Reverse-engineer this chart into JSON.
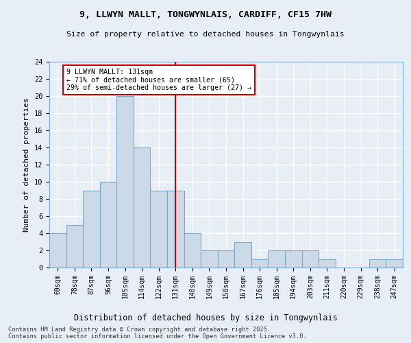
{
  "title1": "9, LLWYN MALLT, TONGWYNLAIS, CARDIFF, CF15 7HW",
  "title2": "Size of property relative to detached houses in Tongwynlais",
  "xlabel": "Distribution of detached houses by size in Tongwynlais",
  "ylabel": "Number of detached properties",
  "bins": [
    "69sqm",
    "78sqm",
    "87sqm",
    "96sqm",
    "105sqm",
    "114sqm",
    "122sqm",
    "131sqm",
    "140sqm",
    "149sqm",
    "158sqm",
    "167sqm",
    "176sqm",
    "185sqm",
    "194sqm",
    "203sqm",
    "211sqm",
    "220sqm",
    "229sqm",
    "238sqm",
    "247sqm"
  ],
  "values": [
    4,
    5,
    9,
    10,
    20,
    14,
    9,
    9,
    4,
    2,
    2,
    3,
    1,
    2,
    2,
    2,
    1,
    0,
    0,
    1,
    1
  ],
  "bar_color": "#ccd9e8",
  "bar_edge_color": "#7aaac8",
  "highlight_index": 7,
  "highlight_line_color": "#cc0000",
  "annotation_text": "9 LLWYN MALLT: 131sqm\n← 71% of detached houses are smaller (65)\n29% of semi-detached houses are larger (27) →",
  "annotation_box_color": "#ffffff",
  "annotation_box_edge": "#cc0000",
  "ylim": [
    0,
    24
  ],
  "yticks": [
    0,
    2,
    4,
    6,
    8,
    10,
    12,
    14,
    16,
    18,
    20,
    22,
    24
  ],
  "footer": "Contains HM Land Registry data © Crown copyright and database right 2025.\nContains public sector information licensed under the Open Government Licence v3.0.",
  "background_color": "#e8eef5",
  "grid_color": "#ffffff"
}
